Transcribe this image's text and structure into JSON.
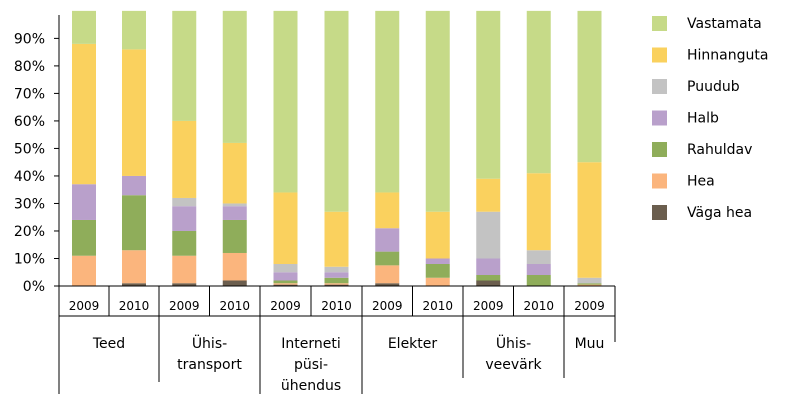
{
  "chart_data": {
    "type": "bar",
    "stacked": true,
    "percent": true,
    "title": "",
    "xlabel": "",
    "ylabel": "",
    "ylim": [
      0,
      100
    ],
    "yticks": [
      "0%",
      "10%",
      "20%",
      "30%",
      "40%",
      "50%",
      "60%",
      "70%",
      "80%",
      "90%"
    ],
    "groups": [
      {
        "label": "Teed",
        "years": [
          "2009",
          "2010"
        ]
      },
      {
        "label": "Ühis-\ntransport",
        "years": [
          "2009",
          "2010"
        ]
      },
      {
        "label": "Interneti\npüsi-\nühendus",
        "years": [
          "2009",
          "2010"
        ]
      },
      {
        "label": "Elekter",
        "years": [
          "2009",
          "2010"
        ]
      },
      {
        "label": "Ühis-\nveevärk",
        "years": [
          "2009",
          "2010"
        ]
      },
      {
        "label": "Muu",
        "years": [
          "2009"
        ]
      }
    ],
    "categories": [
      "Teed 2009",
      "Teed 2010",
      "Ühistransport 2009",
      "Ühistransport 2010",
      "Interneti püsiühendus 2009",
      "Interneti püsiühendus 2010",
      "Elekter 2009",
      "Elekter 2010",
      "Ühisveevärk 2009",
      "Ühisveevärk 2010",
      "Muu 2009"
    ],
    "series": [
      {
        "name": "Väga hea",
        "color": "#6b5e4e",
        "values": [
          0,
          1,
          1,
          2,
          0.5,
          0.5,
          1,
          0,
          2,
          0,
          0
        ]
      },
      {
        "name": "Hea",
        "color": "#fbb57d",
        "values": [
          11,
          12,
          10,
          10,
          0.5,
          0.5,
          6.5,
          3,
          0,
          0,
          0.5
        ]
      },
      {
        "name": "Rahuldav",
        "color": "#8fad5a",
        "values": [
          13,
          20,
          9,
          12,
          1,
          2,
          5,
          5,
          2,
          4,
          0.5
        ]
      },
      {
        "name": "Halb",
        "color": "#b9a0cb",
        "values": [
          13,
          7,
          9,
          5,
          3,
          2,
          8.5,
          2,
          6,
          4,
          0
        ]
      },
      {
        "name": "Puudub",
        "color": "#c3c3c3",
        "values": [
          0,
          0,
          3,
          1,
          3,
          2,
          0,
          0,
          17,
          5,
          2
        ]
      },
      {
        "name": "Hinnanguta",
        "color": "#fad15e",
        "values": [
          51,
          46,
          28,
          22,
          26,
          20,
          13,
          17,
          12,
          28,
          42
        ]
      },
      {
        "name": "Vastamata",
        "color": "#c6da88",
        "values": [
          12,
          14,
          40,
          48,
          66,
          73,
          66,
          73,
          61,
          59,
          55
        ]
      }
    ],
    "legend": {
      "placement": "right",
      "entries": [
        "Vastamata",
        "Hinnanguta",
        "Puudub",
        "Halb",
        "Rahuldav",
        "Hea",
        "Väga hea"
      ]
    }
  }
}
